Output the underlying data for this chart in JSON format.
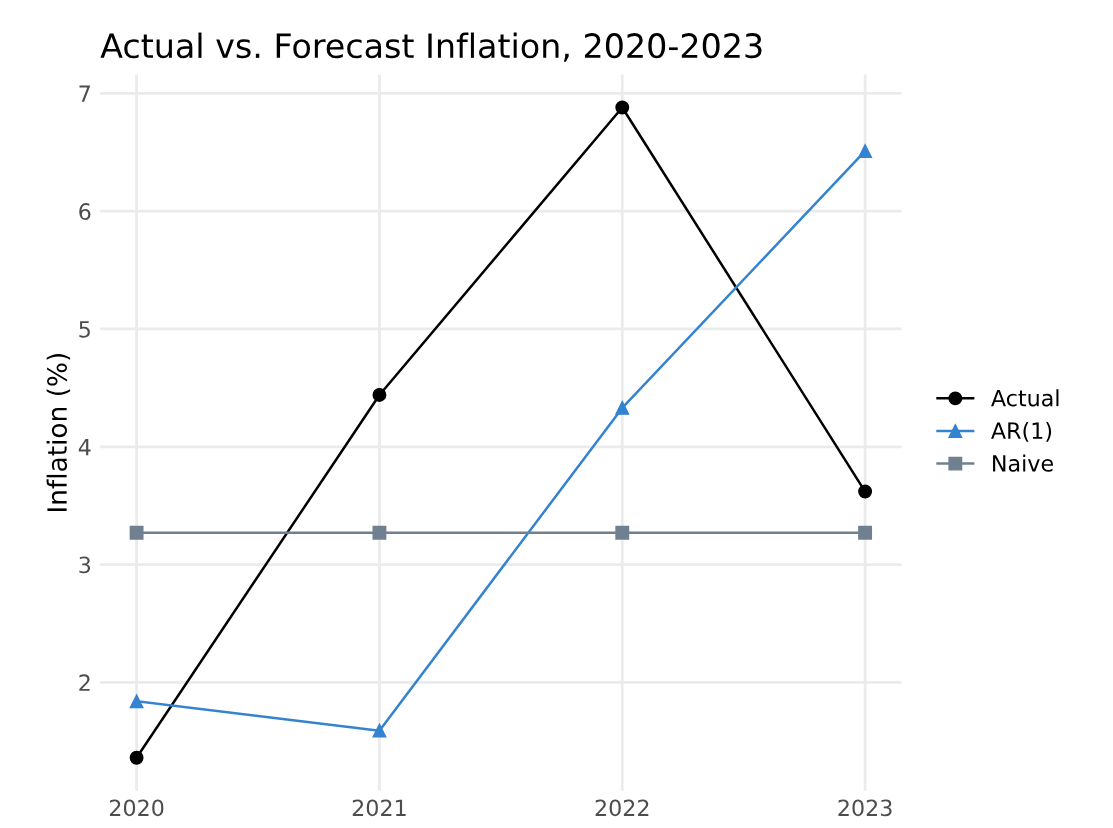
{
  "chart_data": {
    "type": "line",
    "title": "Actual vs. Forecast Inflation, 2020-2023",
    "ylabel": "Inflation (%)",
    "x": [
      2020,
      2021,
      2022,
      2023
    ],
    "series": [
      {
        "name": "Actual",
        "color": "#000000",
        "marker": "circle",
        "values": [
          1.36,
          4.44,
          6.88,
          3.62
        ]
      },
      {
        "name": "AR(1)",
        "color": "#3383d1",
        "marker": "triangle",
        "values": [
          1.84,
          1.59,
          4.33,
          6.51
        ]
      },
      {
        "name": "Naive",
        "color": "#708090",
        "marker": "square",
        "values": [
          3.27,
          3.27,
          3.27,
          3.27
        ]
      }
    ],
    "xlim": [
      2019.85,
      2023.15
    ],
    "xticks": [
      2020,
      2021,
      2022,
      2023
    ],
    "ylim": [
      1.08,
      7.16
    ],
    "yticks": [
      2,
      3,
      4,
      5,
      6,
      7
    ],
    "grid": true,
    "legend": "right",
    "line_style": "solid"
  }
}
